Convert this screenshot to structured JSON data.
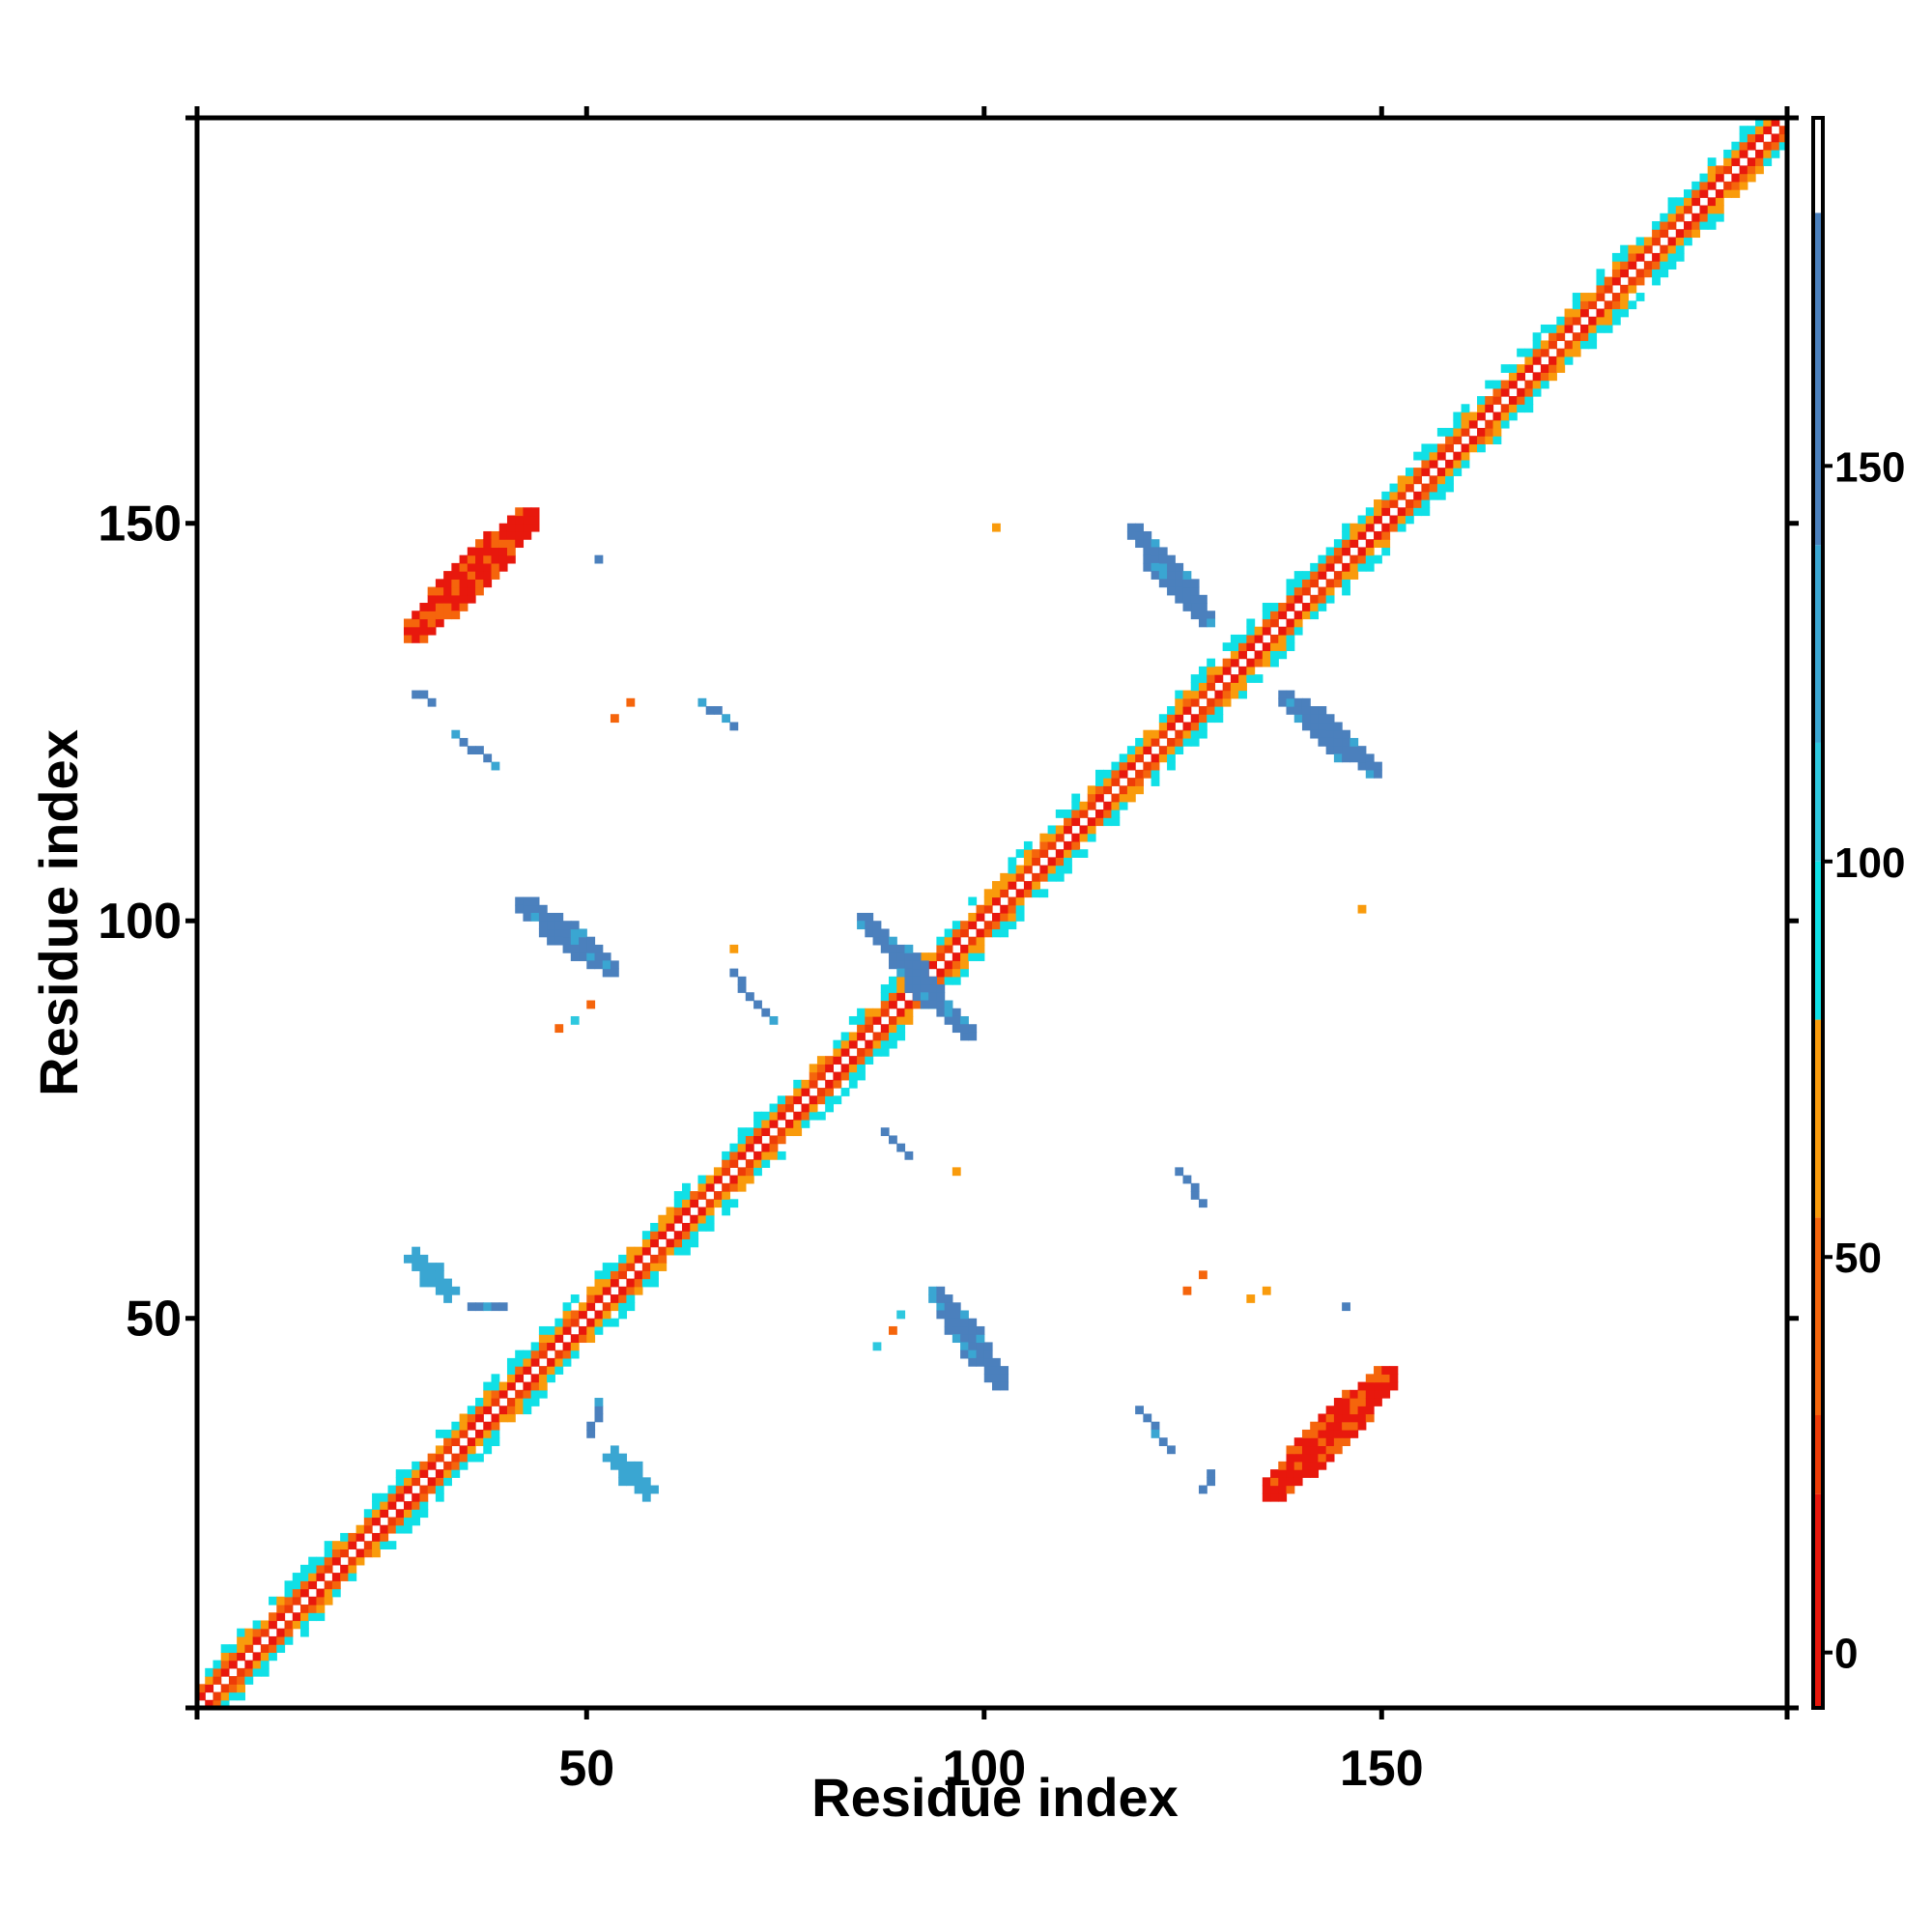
{
  "chart_data": {
    "type": "heatmap",
    "title": "",
    "xlabel": "Residue index",
    "ylabel": "Residue index",
    "xlim": [
      1,
      201
    ],
    "ylim": [
      1,
      201
    ],
    "x_ticks": [
      50,
      100,
      150
    ],
    "y_ticks": [
      50,
      100,
      150
    ],
    "colorbar": {
      "ticks": [
        0,
        50,
        100,
        150
      ],
      "range": [
        -7,
        194
      ],
      "segments": [
        {
          "from": -7,
          "to": 20,
          "color": "#e8180d"
        },
        {
          "from": 20,
          "to": 30,
          "color": "#ee3c08"
        },
        {
          "from": 30,
          "to": 55,
          "color": "#f5650c"
        },
        {
          "from": 55,
          "to": 80,
          "color": "#f99b0c"
        },
        {
          "from": 80,
          "to": 100,
          "color": "#10e0e6"
        },
        {
          "from": 100,
          "to": 115,
          "color": "#2ec8df"
        },
        {
          "from": 115,
          "to": 140,
          "color": "#3aa6d2"
        },
        {
          "from": 140,
          "to": 182,
          "color": "#4b80bd"
        },
        {
          "from": 182,
          "to": 194,
          "color": "#ffffff"
        }
      ]
    },
    "grid": false,
    "legend": "colorbar-right",
    "regions": [
      {
        "label": "diagonal band",
        "kind": "band",
        "from": [
          1,
          1
        ],
        "to": [
          201,
          201
        ],
        "value": "0-100"
      },
      {
        "kind": "stripe",
        "from": [
          28,
          136
        ],
        "to": [
          42,
          150
        ],
        "width": 2.5,
        "value": 15
      },
      {
        "kind": "stripe",
        "from": [
          136,
          28
        ],
        "to": [
          150,
          42
        ],
        "width": 2.5,
        "value": 15
      },
      {
        "kind": "stripe",
        "from": [
          118,
          149
        ],
        "to": [
          128,
          137
        ],
        "width": 1.5,
        "value": 160
      },
      {
        "kind": "stripe",
        "from": [
          137,
          128
        ],
        "to": [
          149,
          118
        ],
        "width": 1.5,
        "value": 160
      },
      {
        "kind": "stripe",
        "from": [
          84,
          100
        ],
        "to": [
          98,
          85
        ],
        "width": 1.5,
        "value": 160
      },
      {
        "kind": "stripe",
        "from": [
          41,
          102
        ],
        "to": [
          53,
          93
        ],
        "width": 1.5,
        "value": 150
      },
      {
        "kind": "stripe",
        "from": [
          93,
          53
        ],
        "to": [
          102,
          41
        ],
        "width": 1.5,
        "value": 150
      },
      {
        "kind": "stripe",
        "from": [
          28,
          57
        ],
        "to": [
          32,
          53
        ],
        "width": 1.5,
        "value": 120
      },
      {
        "kind": "stripe",
        "from": [
          53,
          32
        ],
        "to": [
          57,
          28
        ],
        "width": 1.5,
        "value": 120
      },
      {
        "kind": "stripe",
        "from": [
          64,
          127
        ],
        "to": [
          68,
          124
        ],
        "width": 0.8,
        "value": 160
      },
      {
        "kind": "stripe",
        "from": [
          124,
          68
        ],
        "to": [
          127,
          64
        ],
        "width": 0.8,
        "value": 160
      },
      {
        "kind": "stripe",
        "from": [
          87,
          73
        ],
        "to": [
          90,
          70
        ],
        "width": 0.8,
        "value": 150
      },
      {
        "kind": "stripe",
        "from": [
          70,
          90
        ],
        "to": [
          73,
          87
        ],
        "width": 0.8,
        "value": 150
      },
      {
        "kind": "stripe",
        "from": [
          68,
          93
        ],
        "to": [
          70,
          90
        ],
        "width": 0.8,
        "value": 150
      },
      {
        "kind": "stripe",
        "from": [
          28,
          128
        ],
        "to": [
          30,
          127
        ],
        "width": 0.5,
        "value": 150
      },
      {
        "kind": "stripe",
        "from": [
          127,
          28
        ],
        "to": [
          128,
          30
        ],
        "width": 0.5,
        "value": 150
      },
      {
        "kind": "stripe",
        "from": [
          35,
          51
        ],
        "to": [
          39,
          51
        ],
        "width": 0.4,
        "value": 160
      },
      {
        "kind": "stripe",
        "from": [
          50,
          35
        ],
        "to": [
          51,
          39
        ],
        "width": 0.4,
        "value": 160
      },
      {
        "kind": "stripe",
        "from": [
          33,
          123
        ],
        "to": [
          38,
          119
        ],
        "width": 0.4,
        "value": 140
      },
      {
        "kind": "stripe",
        "from": [
          119,
          38
        ],
        "to": [
          123,
          33
        ],
        "width": 0.4,
        "value": 140
      }
    ],
    "points": [
      {
        "x": 101,
        "y": 149,
        "value": 70
      },
      {
        "x": 147,
        "y": 101,
        "value": 70
      },
      {
        "x": 53,
        "y": 125,
        "value": 50
      },
      {
        "x": 55,
        "y": 127,
        "value": 50
      },
      {
        "x": 125,
        "y": 53,
        "value": 50
      },
      {
        "x": 127,
        "y": 55,
        "value": 50
      },
      {
        "x": 51,
        "y": 145,
        "value": 160
      },
      {
        "x": 145,
        "y": 51,
        "value": 160
      },
      {
        "x": 68,
        "y": 96,
        "value": 60
      },
      {
        "x": 96,
        "y": 68,
        "value": 60
      },
      {
        "x": 46,
        "y": 86,
        "value": 50
      },
      {
        "x": 48,
        "y": 87,
        "value": 100
      },
      {
        "x": 50,
        "y": 89,
        "value": 40
      },
      {
        "x": 86,
        "y": 46,
        "value": 100
      },
      {
        "x": 88,
        "y": 48,
        "value": 50
      },
      {
        "x": 89,
        "y": 50,
        "value": 100
      },
      {
        "x": 135,
        "y": 53,
        "value": 60
      },
      {
        "x": 133,
        "y": 52,
        "value": 60
      }
    ]
  }
}
